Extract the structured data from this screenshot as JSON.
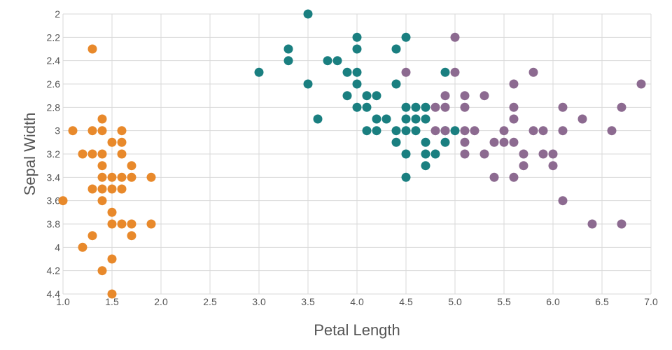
{
  "chart_data": {
    "type": "scatter",
    "title": "",
    "xlabel": "Petal Length",
    "ylabel": "Sepal Width",
    "xlim": [
      1.0,
      7.0
    ],
    "ylim": [
      2.0,
      4.4
    ],
    "y_inverted": true,
    "grid": true,
    "legend": "none",
    "x_ticks": [
      "1.0",
      "1.5",
      "2.0",
      "2.5",
      "3.0",
      "3.5",
      "4.0",
      "4.5",
      "5.0",
      "5.5",
      "6.0",
      "6.5",
      "7.0"
    ],
    "y_ticks": [
      "2",
      "2.2",
      "2.4",
      "2.6",
      "2.8",
      "3",
      "3.2",
      "3.4",
      "3.6",
      "3.8",
      "4",
      "4.2",
      "4.4"
    ],
    "series": [
      {
        "color": "#e8892b",
        "points": [
          [
            1.3,
            2.3
          ],
          [
            1.1,
            3.0
          ],
          [
            1.3,
            3.0
          ],
          [
            1.4,
            3.0
          ],
          [
            1.6,
            3.0
          ],
          [
            1.4,
            2.9
          ],
          [
            1.5,
            3.1
          ],
          [
            1.6,
            3.1
          ],
          [
            1.2,
            3.2
          ],
          [
            1.3,
            3.2
          ],
          [
            1.4,
            3.2
          ],
          [
            1.6,
            3.2
          ],
          [
            1.4,
            3.3
          ],
          [
            1.7,
            3.3
          ],
          [
            1.4,
            3.4
          ],
          [
            1.5,
            3.4
          ],
          [
            1.6,
            3.4
          ],
          [
            1.7,
            3.4
          ],
          [
            1.9,
            3.4
          ],
          [
            1.3,
            3.5
          ],
          [
            1.4,
            3.5
          ],
          [
            1.5,
            3.5
          ],
          [
            1.6,
            3.5
          ],
          [
            1.0,
            3.6
          ],
          [
            1.4,
            3.6
          ],
          [
            1.5,
            3.7
          ],
          [
            1.5,
            3.8
          ],
          [
            1.6,
            3.8
          ],
          [
            1.7,
            3.8
          ],
          [
            1.9,
            3.8
          ],
          [
            1.3,
            3.9
          ],
          [
            1.7,
            3.9
          ],
          [
            1.2,
            4.0
          ],
          [
            1.5,
            4.1
          ],
          [
            1.4,
            4.2
          ],
          [
            1.5,
            4.4
          ]
        ]
      },
      {
        "color": "#1a7f80",
        "points": [
          [
            3.5,
            2.0
          ],
          [
            4.0,
            2.2
          ],
          [
            4.5,
            2.2
          ],
          [
            3.3,
            2.3
          ],
          [
            4.0,
            2.3
          ],
          [
            4.4,
            2.3
          ],
          [
            3.3,
            2.4
          ],
          [
            3.7,
            2.4
          ],
          [
            3.8,
            2.4
          ],
          [
            3.0,
            2.5
          ],
          [
            3.9,
            2.5
          ],
          [
            4.0,
            2.5
          ],
          [
            4.9,
            2.5
          ],
          [
            3.5,
            2.6
          ],
          [
            4.0,
            2.6
          ],
          [
            4.4,
            2.6
          ],
          [
            3.9,
            2.7
          ],
          [
            4.1,
            2.7
          ],
          [
            4.2,
            2.7
          ],
          [
            4.0,
            2.8
          ],
          [
            4.1,
            2.8
          ],
          [
            4.5,
            2.8
          ],
          [
            4.6,
            2.8
          ],
          [
            4.7,
            2.8
          ],
          [
            3.6,
            2.9
          ],
          [
            4.2,
            2.9
          ],
          [
            4.3,
            2.9
          ],
          [
            4.5,
            2.9
          ],
          [
            4.6,
            2.9
          ],
          [
            4.7,
            2.9
          ],
          [
            4.1,
            3.0
          ],
          [
            4.2,
            3.0
          ],
          [
            4.4,
            3.0
          ],
          [
            4.5,
            3.0
          ],
          [
            4.6,
            3.0
          ],
          [
            4.9,
            3.0
          ],
          [
            5.0,
            3.0
          ],
          [
            4.4,
            3.1
          ],
          [
            4.7,
            3.1
          ],
          [
            4.9,
            3.1
          ],
          [
            4.5,
            3.2
          ],
          [
            4.7,
            3.2
          ],
          [
            4.8,
            3.2
          ],
          [
            4.7,
            3.3
          ],
          [
            4.5,
            3.4
          ]
        ]
      },
      {
        "color": "#8c6a90",
        "points": [
          [
            5.0,
            2.2
          ],
          [
            4.5,
            2.5
          ],
          [
            5.0,
            2.5
          ],
          [
            5.8,
            2.5
          ],
          [
            5.6,
            2.6
          ],
          [
            6.9,
            2.6
          ],
          [
            4.9,
            2.7
          ],
          [
            5.1,
            2.7
          ],
          [
            5.3,
            2.7
          ],
          [
            4.8,
            2.8
          ],
          [
            4.9,
            2.8
          ],
          [
            5.1,
            2.8
          ],
          [
            5.6,
            2.8
          ],
          [
            6.1,
            2.8
          ],
          [
            6.7,
            2.8
          ],
          [
            5.6,
            2.9
          ],
          [
            6.3,
            2.9
          ],
          [
            4.8,
            3.0
          ],
          [
            4.9,
            3.0
          ],
          [
            5.1,
            3.0
          ],
          [
            5.2,
            3.0
          ],
          [
            5.5,
            3.0
          ],
          [
            5.8,
            3.0
          ],
          [
            5.9,
            3.0
          ],
          [
            6.1,
            3.0
          ],
          [
            6.6,
            3.0
          ],
          [
            5.1,
            3.1
          ],
          [
            5.4,
            3.1
          ],
          [
            5.5,
            3.1
          ],
          [
            5.6,
            3.1
          ],
          [
            5.1,
            3.2
          ],
          [
            5.3,
            3.2
          ],
          [
            5.7,
            3.2
          ],
          [
            5.9,
            3.2
          ],
          [
            6.0,
            3.2
          ],
          [
            5.7,
            3.3
          ],
          [
            6.0,
            3.3
          ],
          [
            5.4,
            3.4
          ],
          [
            5.6,
            3.4
          ],
          [
            6.1,
            3.6
          ],
          [
            6.4,
            3.8
          ],
          [
            6.7,
            3.8
          ]
        ]
      }
    ]
  }
}
